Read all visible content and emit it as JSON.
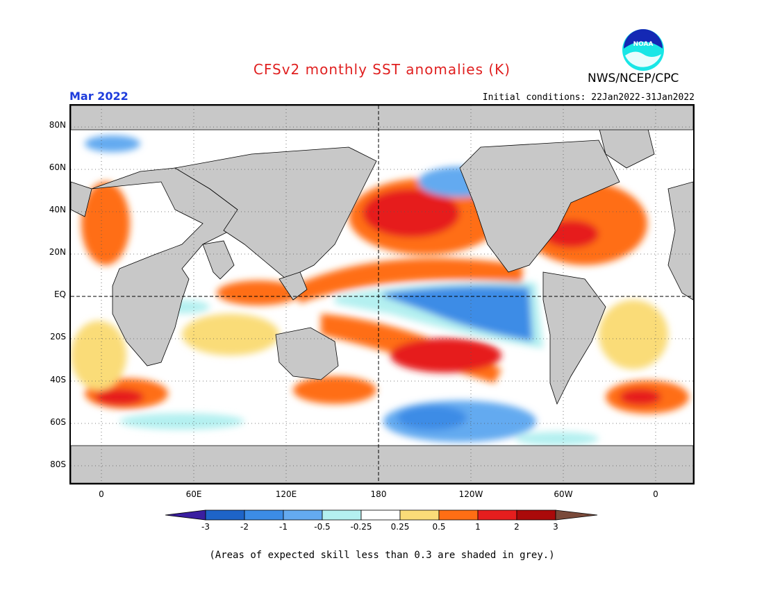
{
  "header": {
    "title": "CFSv2 monthly SST anomalies (K)",
    "agency": "NWS/NCEP/CPC",
    "logo_text": "NOAA",
    "month": "Mar 2022",
    "initial_conditions": "Initial conditions: 22Jan2022-31Jan2022"
  },
  "colors": {
    "title": "#e02020",
    "month": "#1e3cdc",
    "land": "#c8c8c8",
    "grey_skill": "#b4b4b4"
  },
  "map": {
    "lat_labels": [
      "80N",
      "60N",
      "40N",
      "20N",
      "EQ",
      "20S",
      "40S",
      "60S",
      "80S"
    ],
    "lon_labels": [
      "0",
      "60E",
      "120E",
      "180",
      "120W",
      "60W",
      "0"
    ]
  },
  "colorbar": {
    "labels": [
      "-3",
      "-2",
      "-1",
      "-0.5",
      "-0.25",
      "0.25",
      "0.5",
      "1",
      "2",
      "3"
    ],
    "colors": [
      "#3a1ea0",
      "#1e64c8",
      "#3c8ce6",
      "#64aaf0",
      "#b4f0f0",
      "#ffffff",
      "#fadc78",
      "#ff6e14",
      "#e61e1e",
      "#aa0a0a",
      "#7a4a3a"
    ]
  },
  "footnote": "(Areas of expected skill less than 0.3 are shaded in grey.)"
}
